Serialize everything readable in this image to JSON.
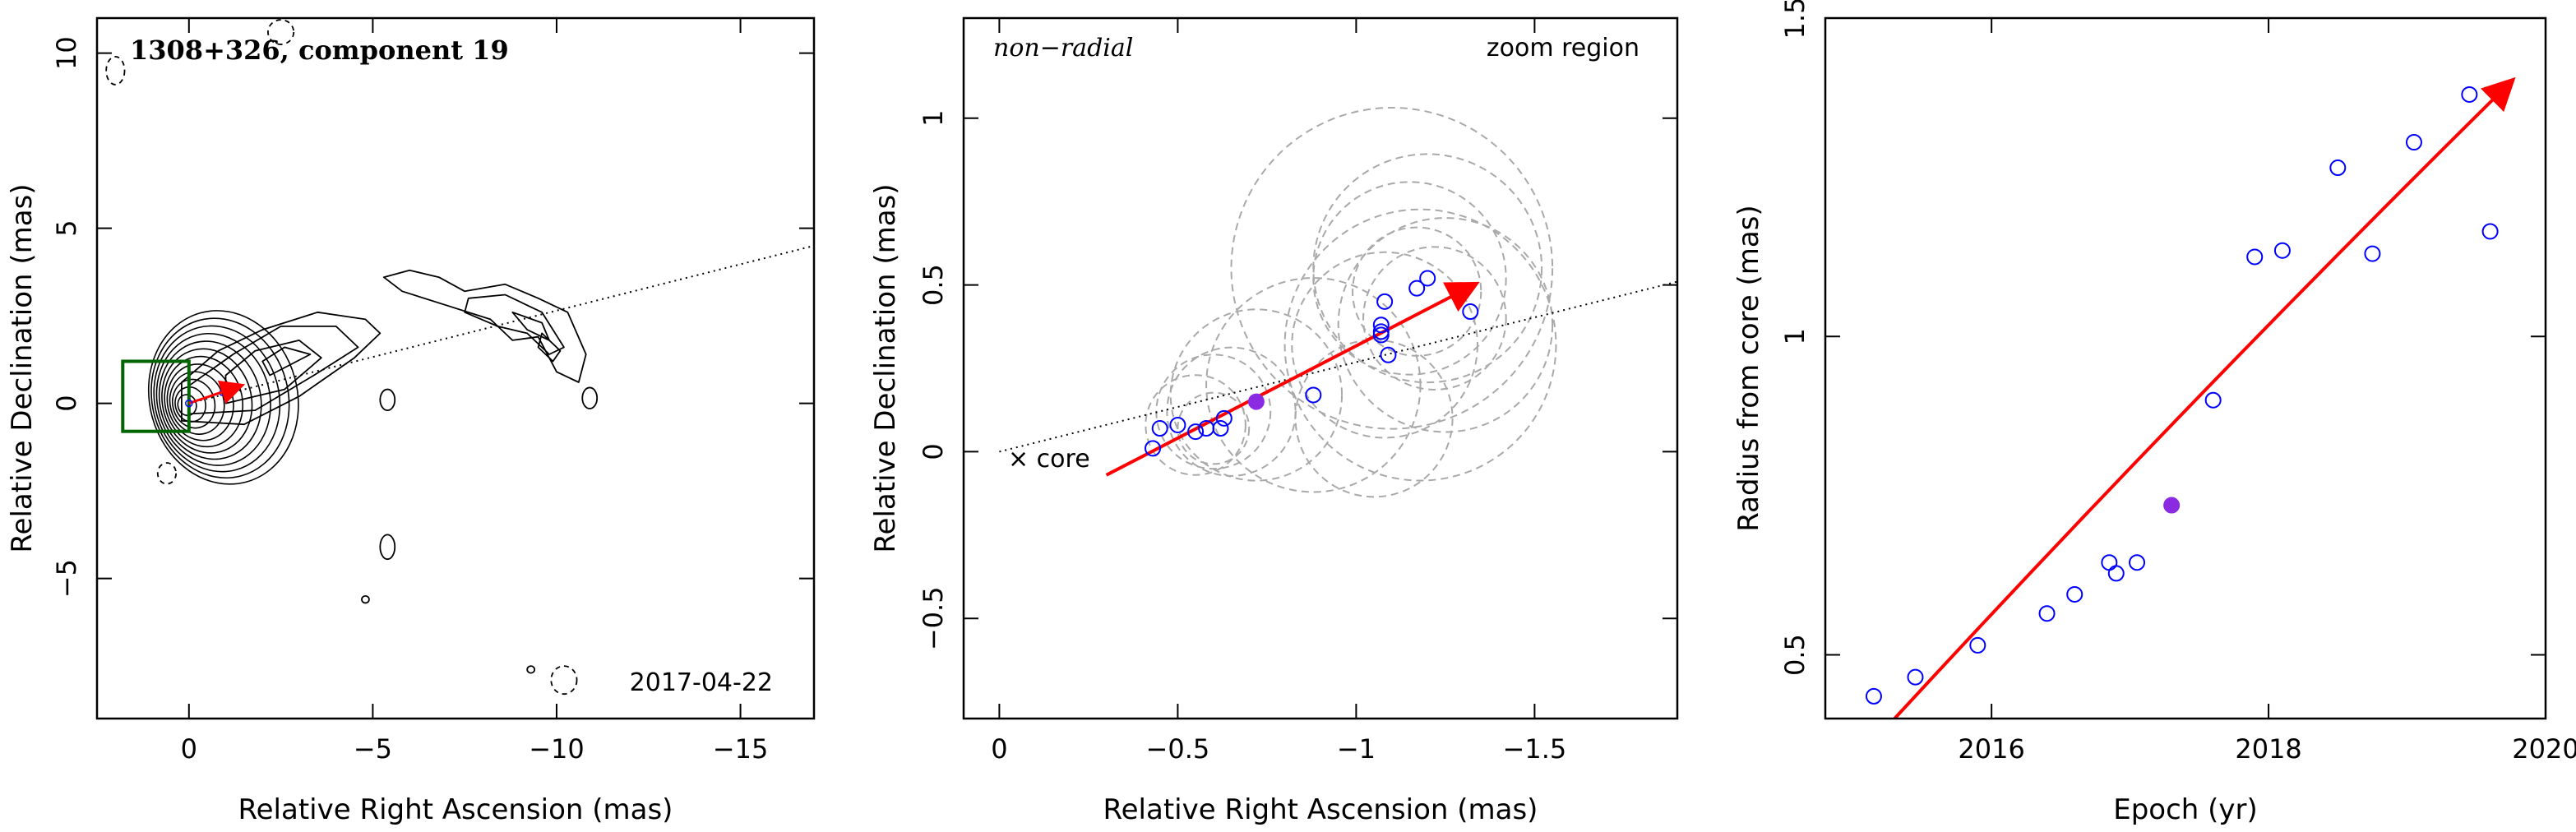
{
  "chart_data": [
    {
      "type": "contour",
      "title": "1308+326, component 19",
      "date_label": "2017-04-22",
      "xlabel": "Relative Right Ascension (mas)",
      "ylabel": "Relative Declination (mas)",
      "xlim": [
        2.5,
        -17
      ],
      "ylim": [
        -9,
        11
      ],
      "xticks": [
        0,
        -5,
        -10,
        -15
      ],
      "yticks": [
        -5,
        0,
        5,
        10
      ],
      "xtick_labels": [
        "0",
        "−5",
        "−10",
        "−15"
      ],
      "ytick_labels": [
        "−5",
        "0",
        "5",
        "10"
      ],
      "jet_axis": {
        "x": [
          0,
          -17
        ],
        "y": [
          0,
          4.5
        ]
      },
      "zoom_box": {
        "x": [
          1.8,
          0.0
        ],
        "y": [
          -0.8,
          1.2
        ]
      },
      "arrow": {
        "x": [
          0,
          1.4
        ],
        "y": [
          0,
          0.5
        ]
      },
      "colors": {
        "contour": "#000000",
        "arrow": "#ff0000",
        "box": "#006400"
      }
    },
    {
      "type": "scatter",
      "annotation": "non−radial",
      "zoom_label": "zoom region",
      "core_label": "× core",
      "xlabel": "Relative Right Ascension (mas)",
      "ylabel": "Relative Declination (mas)",
      "xlim": [
        0.1,
        -1.9
      ],
      "ylim": [
        -0.8,
        1.3
      ],
      "xticks": [
        0,
        -0.5,
        -1,
        -1.5
      ],
      "yticks": [
        -0.5,
        0,
        0.5,
        1
      ],
      "xtick_labels": [
        "0",
        "−0.5",
        "−1",
        "−1.5"
      ],
      "ytick_labels": [
        "−0.5",
        "0",
        "0.5",
        "1"
      ],
      "points_open": {
        "x": [
          -0.43,
          -0.45,
          -0.5,
          -0.55,
          -0.58,
          -0.62,
          -0.63,
          -0.88,
          -1.07,
          -1.07,
          -1.08,
          -1.07,
          -1.09,
          -1.17,
          -1.2,
          -1.32
        ],
        "y": [
          0.01,
          0.07,
          0.08,
          0.06,
          0.07,
          0.07,
          0.1,
          0.17,
          0.35,
          0.38,
          0.45,
          0.36,
          0.29,
          0.49,
          0.52,
          0.42
        ]
      },
      "point_filled": {
        "x": -0.72,
        "y": 0.15
      },
      "circles": [
        {
          "x": -0.55,
          "y": 0.08,
          "r": 0.14
        },
        {
          "x": -0.6,
          "y": 0.07,
          "r": 0.1
        },
        {
          "x": -0.6,
          "y": 0.12,
          "r": 0.16
        },
        {
          "x": -0.65,
          "y": 0.12,
          "r": 0.18
        },
        {
          "x": -0.72,
          "y": 0.17,
          "r": 0.24
        },
        {
          "x": -0.88,
          "y": 0.2,
          "r": 0.3
        },
        {
          "x": -1.05,
          "y": 0.1,
          "r": 0.22
        },
        {
          "x": -1.08,
          "y": 0.32,
          "r": 0.26
        },
        {
          "x": -1.1,
          "y": 0.55,
          "r": 0.45
        },
        {
          "x": -1.18,
          "y": 0.32,
          "r": 0.38
        },
        {
          "x": -1.2,
          "y": 0.55,
          "r": 0.32
        },
        {
          "x": -1.25,
          "y": 0.38,
          "r": 0.3
        },
        {
          "x": -1.17,
          "y": 0.48,
          "r": 0.18
        },
        {
          "x": -1.22,
          "y": 0.4,
          "r": 0.2
        },
        {
          "x": -1.15,
          "y": 0.52,
          "r": 0.27
        }
      ],
      "arrow": {
        "x": [
          -0.3,
          -1.33
        ],
        "y": [
          -0.07,
          0.5
        ]
      },
      "jet_axis": {
        "x": [
          0,
          -1.9
        ],
        "y": [
          0,
          0.51
        ]
      },
      "colors": {
        "points": "#0000ff",
        "filled": "#8a2be2",
        "arrow": "#ff0000",
        "circles": "#a9a9a9"
      }
    },
    {
      "type": "scatter",
      "xlabel": "Epoch (yr)",
      "ylabel": "Radius from core (mas)",
      "xlim": [
        2014.8,
        2020
      ],
      "ylim": [
        0.4,
        1.5
      ],
      "xticks": [
        2016,
        2018,
        2020
      ],
      "yticks": [
        0.5,
        1,
        1.5
      ],
      "xtick_labels": [
        "2016",
        "2018",
        "2020"
      ],
      "ytick_labels": [
        "0.5",
        "1",
        "1.5"
      ],
      "points_open": {
        "x": [
          2015.15,
          2015.45,
          2015.9,
          2016.4,
          2016.6,
          2016.85,
          2016.9,
          2017.05,
          2017.6,
          2017.9,
          2018.1,
          2018.5,
          2018.75,
          2019.05,
          2019.45,
          2019.6
        ],
        "y": [
          0.435,
          0.465,
          0.515,
          0.565,
          0.595,
          0.645,
          0.628,
          0.645,
          0.9,
          1.125,
          1.135,
          1.265,
          1.13,
          1.305,
          1.38,
          1.165
        ]
      },
      "point_filled": {
        "x": 2017.3,
        "y": 0.735
      },
      "arrow": {
        "x": [
          2015.3,
          2019.75
        ],
        "y": [
          0.4,
          1.4
        ]
      },
      "colors": {
        "points": "#0000ff",
        "filled": "#8a2be2",
        "arrow": "#ff0000"
      }
    }
  ]
}
